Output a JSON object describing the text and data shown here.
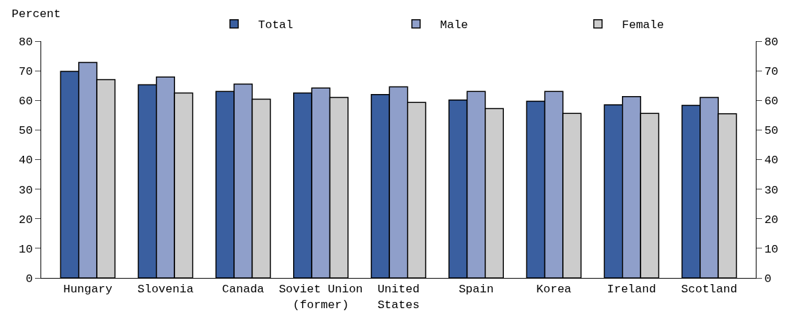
{
  "chart_data": {
    "type": "bar",
    "ylabel": "Percent",
    "categories": [
      "Hungary",
      "Slovenia",
      "Canada",
      "Soviet Union\n(former)",
      "United\nStates",
      "Spain",
      "Korea",
      "Ireland",
      "Scotland"
    ],
    "series": [
      {
        "name": "Total",
        "color": "#3a5fa0",
        "values": [
          69.8,
          65.3,
          63.0,
          62.5,
          62.0,
          60.1,
          59.7,
          58.5,
          58.3
        ]
      },
      {
        "name": "Male",
        "color": "#8f9fca",
        "values": [
          72.8,
          67.9,
          65.5,
          64.2,
          64.6,
          63.0,
          63.0,
          61.3,
          61.0
        ]
      },
      {
        "name": "Female",
        "color": "#cccccc",
        "values": [
          67.0,
          62.5,
          60.4,
          61.0,
          59.3,
          57.2,
          55.6,
          55.6,
          55.5
        ]
      }
    ],
    "ylim": [
      0,
      80
    ],
    "yticks": [
      0,
      10,
      20,
      30,
      40,
      50,
      60,
      70,
      80
    ],
    "y2lim": [
      0,
      80
    ],
    "y2ticks": [
      0,
      10,
      20,
      30,
      40,
      50,
      60,
      70,
      80
    ],
    "legend": "top right"
  }
}
